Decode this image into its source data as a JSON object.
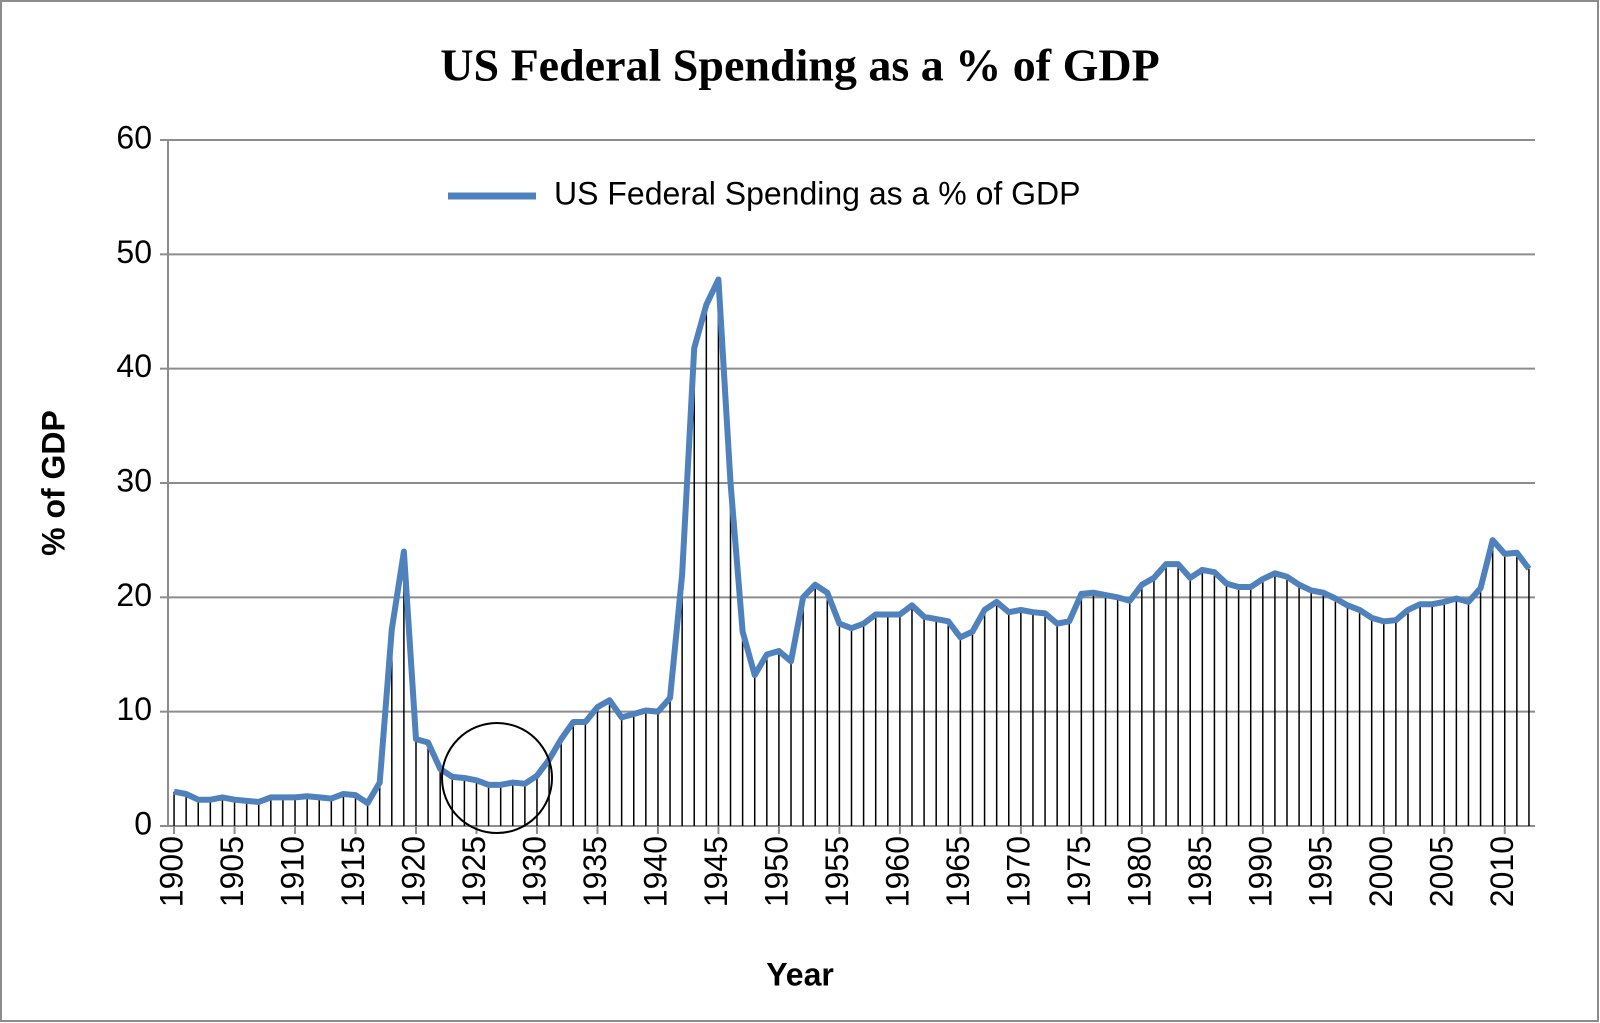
{
  "chart_data": {
    "type": "line",
    "title": "US Federal Spending as a % of GDP",
    "x_label": "Year",
    "y_label": "% of GDP",
    "x": [
      1900,
      1901,
      1902,
      1903,
      1904,
      1905,
      1906,
      1907,
      1908,
      1909,
      1910,
      1911,
      1912,
      1913,
      1914,
      1915,
      1916,
      1917,
      1918,
      1919,
      1920,
      1921,
      1922,
      1923,
      1924,
      1925,
      1926,
      1927,
      1928,
      1929,
      1930,
      1931,
      1932,
      1933,
      1934,
      1935,
      1936,
      1937,
      1938,
      1939,
      1940,
      1941,
      1942,
      1943,
      1944,
      1945,
      1946,
      1947,
      1948,
      1949,
      1950,
      1951,
      1952,
      1953,
      1954,
      1955,
      1956,
      1957,
      1958,
      1959,
      1960,
      1961,
      1962,
      1963,
      1964,
      1965,
      1966,
      1967,
      1968,
      1969,
      1970,
      1971,
      1972,
      1973,
      1974,
      1975,
      1976,
      1977,
      1978,
      1979,
      1980,
      1981,
      1982,
      1983,
      1984,
      1985,
      1986,
      1987,
      1988,
      1989,
      1990,
      1991,
      1992,
      1993,
      1994,
      1995,
      1996,
      1997,
      1998,
      1999,
      2000,
      2001,
      2002,
      2003,
      2004,
      2005,
      2006,
      2007,
      2008,
      2009,
      2010,
      2011,
      2012
    ],
    "series": [
      {
        "name": "US Federal Spending as a % of GDP",
        "color": "#4f81bd",
        "values": [
          3.0,
          2.8,
          2.3,
          2.3,
          2.5,
          2.3,
          2.2,
          2.1,
          2.5,
          2.5,
          2.5,
          2.6,
          2.5,
          2.4,
          2.8,
          2.7,
          2.0,
          3.8,
          17.2,
          24.0,
          7.6,
          7.3,
          5.0,
          4.3,
          4.2,
          4.0,
          3.6,
          3.6,
          3.8,
          3.7,
          4.4,
          5.8,
          7.6,
          9.1,
          9.1,
          10.4,
          11.0,
          9.5,
          9.8,
          10.1,
          10.0,
          11.2,
          22.0,
          41.8,
          45.6,
          47.8,
          30.0,
          17.0,
          13.2,
          15.0,
          15.3,
          14.4,
          20.0,
          21.1,
          20.4,
          17.7,
          17.3,
          17.7,
          18.5,
          18.5,
          18.5,
          19.3,
          18.3,
          18.1,
          17.9,
          16.5,
          17.0,
          18.9,
          19.6,
          18.7,
          18.9,
          18.7,
          18.6,
          17.7,
          17.9,
          20.3,
          20.4,
          20.2,
          20.0,
          19.7,
          21.1,
          21.7,
          22.9,
          22.9,
          21.7,
          22.4,
          22.2,
          21.2,
          20.9,
          20.9,
          21.6,
          22.1,
          21.8,
          21.1,
          20.6,
          20.4,
          19.9,
          19.3,
          18.9,
          18.2,
          17.9,
          18.0,
          18.9,
          19.4,
          19.4,
          19.6,
          19.9,
          19.6,
          20.8,
          25.0,
          23.8,
          23.9,
          22.5
        ]
      }
    ],
    "xlim": [
      1899.5,
      2012.5
    ],
    "xticks": [
      1900,
      1905,
      1910,
      1915,
      1920,
      1925,
      1930,
      1935,
      1940,
      1945,
      1950,
      1955,
      1960,
      1965,
      1970,
      1975,
      1980,
      1985,
      1990,
      1995,
      2000,
      2005,
      2010
    ],
    "ylim": [
      0,
      60
    ],
    "yticks": [
      0,
      10,
      20,
      30,
      40,
      50,
      60
    ],
    "grid": true,
    "drop_lines": true,
    "legend": "upper center"
  }
}
